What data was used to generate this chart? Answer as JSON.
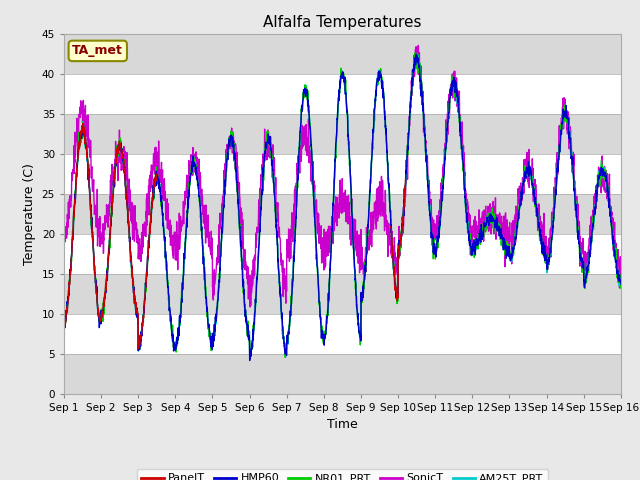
{
  "title": "Alfalfa Temperatures",
  "xlabel": "Time",
  "ylabel": "Temperature (C)",
  "ylim": [
    0,
    45
  ],
  "annotation_text": "TA_met",
  "series": [
    "PanelT",
    "HMP60",
    "NR01_PRT",
    "SonicT",
    "AM25T_PRT"
  ],
  "colors": [
    "#cc0000",
    "#0000cc",
    "#00cc00",
    "#cc00cc",
    "#00cccc"
  ],
  "xtick_labels": [
    "Sep 1",
    "Sep 2",
    "Sep 3",
    "Sep 4",
    "Sep 5",
    "Sep 6",
    "Sep 7",
    "Sep 8",
    "Sep 9",
    "Sep 10",
    "Sep 11",
    "Sep 12",
    "Sep 13",
    "Sep 14",
    "Sep 15",
    "Sep 16"
  ],
  "background_color": "#e8e8e8",
  "plot_bg": "#d8d8d8",
  "linewidth": 1.0,
  "n_days": 15,
  "pts_per_day": 144,
  "daily_highs": [
    33,
    31,
    27,
    29,
    32,
    32,
    38,
    40,
    40,
    42,
    39,
    22,
    28,
    35,
    28
  ],
  "daily_lows": [
    9,
    10,
    6,
    6,
    7,
    5,
    7,
    7,
    12,
    18,
    18,
    18,
    17,
    16,
    14
  ],
  "sonic_highs": [
    35,
    30,
    29,
    29,
    32,
    32,
    32,
    24,
    24,
    42,
    40,
    28,
    30,
    35,
    28
  ],
  "sonic_lows": [
    20,
    20,
    18,
    18,
    14,
    13,
    18,
    18,
    16,
    18,
    26,
    22,
    20,
    20,
    18
  ],
  "cyan_extra_days": [
    6,
    7
  ],
  "cyan_extra_vals": [
    38,
    36
  ]
}
